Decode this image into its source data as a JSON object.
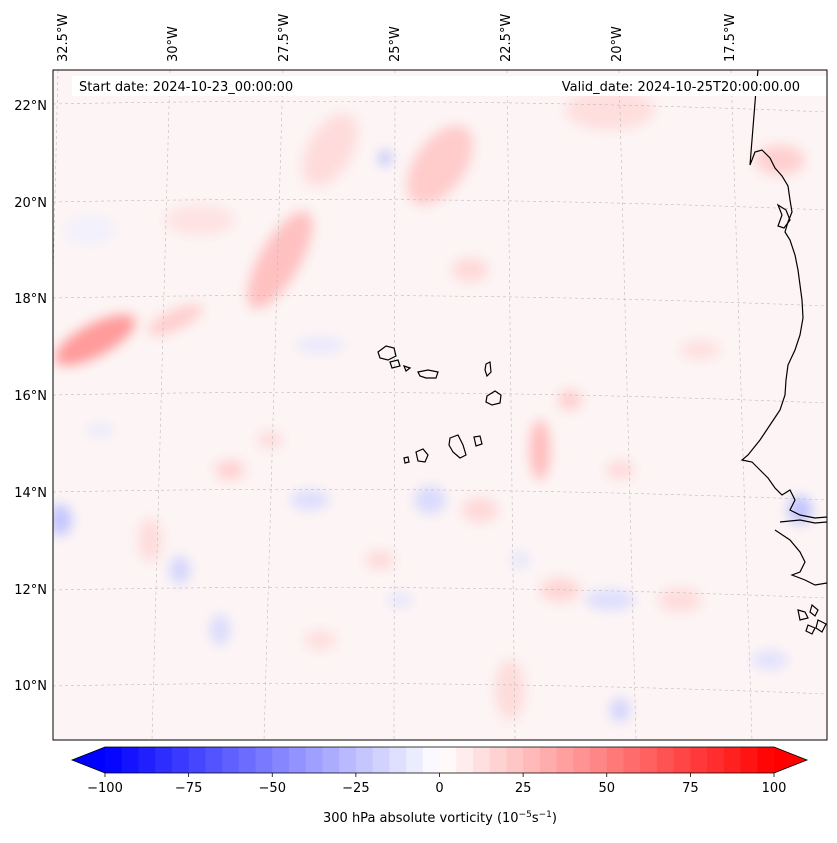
{
  "map": {
    "start_label": "Start date: 2024-10-23_00:00:00",
    "valid_label": "Valid_date: 2024-10-25T20:00:00.00",
    "lon_labels": [
      "32.5°W",
      "30°W",
      "27.5°W",
      "25°W",
      "22.5°W",
      "20°W",
      "17.5°W"
    ],
    "lat_labels": [
      "22°N",
      "20°N",
      "18°N",
      "16°N",
      "14°N",
      "12°N",
      "10°N"
    ],
    "coastline_color": "#000000",
    "gridline_color": "#bbbbbb"
  },
  "colorbar": {
    "label_prefix": "300 hPa absolute vorticity (10",
    "label_exp1": "−5",
    "label_mid": "s",
    "label_exp2": "−1",
    "label_suffix": ")",
    "ticks": [
      "−100",
      "−75",
      "−50",
      "−25",
      "0",
      "25",
      "50",
      "75",
      "100"
    ],
    "tick_values": [
      -100,
      -75,
      -50,
      -25,
      0,
      25,
      50,
      75,
      100
    ],
    "range": [
      -100,
      100
    ],
    "colormap": "bwr",
    "low_color": "#0000ff",
    "mid_color": "#ffffff",
    "high_color": "#ff0000"
  }
}
